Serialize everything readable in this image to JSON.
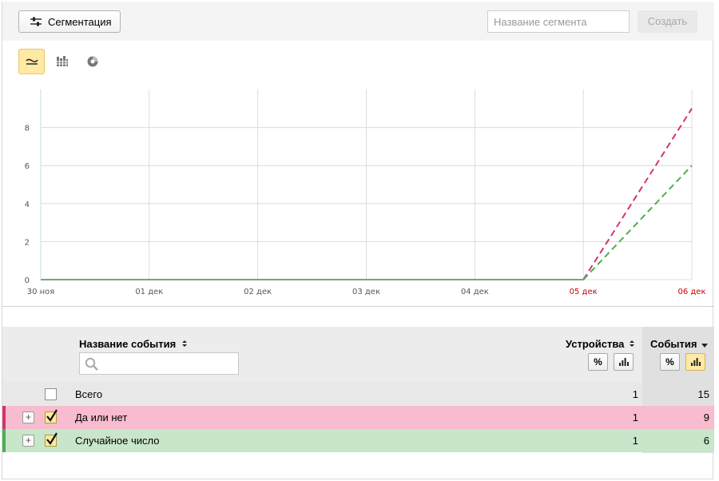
{
  "toolbar": {
    "segmentation_label": "Сегментация",
    "segment_name_placeholder": "Название сегмента",
    "create_label": "Создать"
  },
  "chart_tabs": [
    {
      "name": "line-chart-tab",
      "icon": "line-chart-icon",
      "active": true
    },
    {
      "name": "bar-chart-tab",
      "icon": "bar-chart-icon",
      "active": false
    },
    {
      "name": "pie-chart-tab",
      "icon": "pie-chart-icon",
      "active": false
    }
  ],
  "chart_data": {
    "type": "line",
    "x": [
      "30 ноя",
      "01 дек",
      "02 дек",
      "03 дек",
      "04 дек",
      "05 дек",
      "06 дек"
    ],
    "x_highlighted": [
      "05 дек",
      "06 дек"
    ],
    "ylim": [
      0,
      10
    ],
    "yticks": [
      0,
      2,
      4,
      6,
      8
    ],
    "grid": true,
    "series": [
      {
        "values": [
          0,
          0,
          0,
          0,
          0,
          0,
          9
        ],
        "color": "#d6336c",
        "style": "dashed-last"
      },
      {
        "values": [
          0,
          0,
          0,
          0,
          0,
          0,
          6
        ],
        "color": "#4caf50",
        "style": "dashed-last"
      }
    ]
  },
  "table": {
    "col_name": "Название события",
    "col_devices": "Устройства",
    "col_events": "События",
    "percent_label": "%",
    "rows": [
      {
        "name": "Всего",
        "devices": "1",
        "events": "15",
        "checked": false,
        "expandable": false,
        "bg": "#e8e8e8",
        "bar": null
      },
      {
        "name": "Да или нет",
        "devices": "1",
        "events": "9",
        "checked": true,
        "expandable": true,
        "bg": "#f7bccd",
        "bar": "#d6336c"
      },
      {
        "name": "Случайное число",
        "devices": "1",
        "events": "6",
        "checked": true,
        "expandable": true,
        "bg": "#c8e6c9",
        "bar": "#4caf50"
      }
    ]
  }
}
